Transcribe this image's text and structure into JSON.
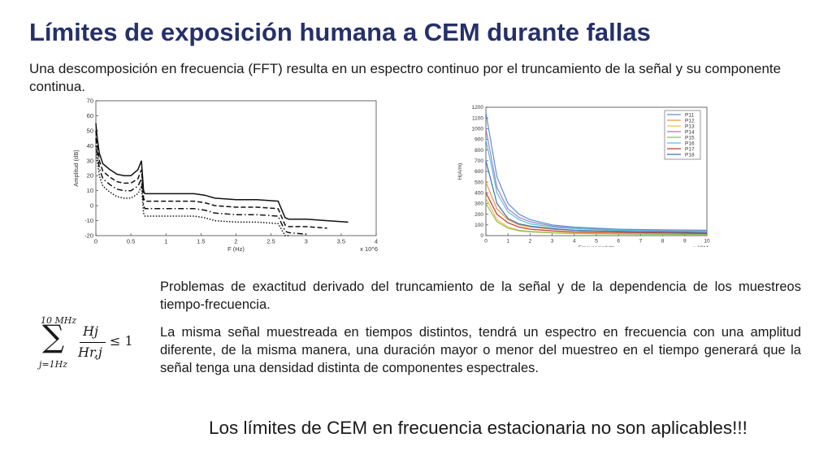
{
  "title": "Límites de exposición humana a CEM durante fallas",
  "intro": "Una descomposición en frecuencia (FFT) resulta en un espectro continuo por el truncamiento de la señal y su componente continua.",
  "chart_data": [
    {
      "type": "line",
      "ylabel": "Amplitud (dB)",
      "xlabel": "F (Hz)",
      "x_multiplier": "x 10^6",
      "xlim": [
        0,
        4
      ],
      "ylim": [
        -20,
        70
      ],
      "x_ticks": [
        "0",
        "0.5",
        "1",
        "1.5",
        "2",
        "2.5",
        "3",
        "3.5",
        "4"
      ],
      "y_ticks": [
        "-20",
        "-10",
        "0",
        "10",
        "20",
        "30",
        "40",
        "50",
        "60",
        "70"
      ],
      "series": [
        {
          "style": "solid",
          "x": [
            0,
            0.02,
            0.05,
            0.1,
            0.2,
            0.3,
            0.4,
            0.5,
            0.6,
            0.65,
            0.68,
            0.7,
            0.8,
            1.0,
            1.2,
            1.4,
            1.55,
            1.7,
            2.0,
            2.3,
            2.6,
            2.7,
            2.75,
            3.0,
            3.3,
            3.6
          ],
          "y": [
            55,
            45,
            35,
            28,
            24,
            21,
            20,
            20,
            24,
            30,
            10,
            8,
            8,
            8,
            8,
            8,
            7,
            5,
            4,
            4,
            3,
            -8,
            -9,
            -9,
            -10,
            -11
          ]
        },
        {
          "style": "dashed",
          "x": [
            0,
            0.02,
            0.05,
            0.1,
            0.2,
            0.3,
            0.4,
            0.5,
            0.6,
            0.65,
            0.68,
            0.7,
            0.8,
            1.0,
            1.2,
            1.4,
            1.55,
            1.7,
            2.0,
            2.3,
            2.6,
            2.7,
            2.75,
            3.0,
            3.3
          ],
          "y": [
            50,
            40,
            30,
            23,
            19,
            16,
            15,
            15,
            18,
            24,
            5,
            3,
            3,
            3,
            3,
            3,
            2,
            0,
            -1,
            -1,
            -2,
            -13,
            -14,
            -14,
            -15
          ]
        },
        {
          "style": "dashdot",
          "x": [
            0,
            0.02,
            0.05,
            0.1,
            0.2,
            0.3,
            0.4,
            0.5,
            0.6,
            0.65,
            0.68,
            0.7,
            0.8,
            1.0,
            1.2,
            1.4,
            1.55,
            1.7,
            2.0,
            2.3,
            2.6,
            2.7,
            2.75,
            3.0
          ],
          "y": [
            45,
            35,
            25,
            18,
            14,
            11,
            10,
            10,
            13,
            18,
            0,
            -2,
            -2,
            -2,
            -2,
            -2,
            -3,
            -5,
            -6,
            -6,
            -7,
            -17,
            -18,
            -19
          ]
        },
        {
          "style": "dotted",
          "x": [
            0,
            0.02,
            0.05,
            0.1,
            0.2,
            0.3,
            0.4,
            0.5,
            0.6,
            0.65,
            0.68,
            0.7,
            0.8,
            1.0,
            1.2,
            1.4,
            1.55,
            1.7,
            2.0,
            2.3,
            2.6,
            2.7,
            2.75
          ],
          "y": [
            40,
            30,
            20,
            13,
            9,
            6,
            5,
            5,
            8,
            13,
            -5,
            -7,
            -7,
            -7,
            -7,
            -7,
            -8,
            -10,
            -11,
            -11,
            -12,
            -20,
            -20
          ]
        }
      ]
    },
    {
      "type": "line",
      "ylabel": "H(A/m)",
      "xlabel": "Frecuencia(Hz)",
      "x_multiplier": "x 10^4",
      "xlim": [
        0,
        10
      ],
      "ylim": [
        0,
        1200
      ],
      "x_ticks": [
        "0",
        "1",
        "2",
        "3",
        "4",
        "5",
        "6",
        "7",
        "8",
        "9",
        "10"
      ],
      "y_ticks": [
        "0",
        "100",
        "200",
        "300",
        "400",
        "500",
        "600",
        "700",
        "800",
        "900",
        "1000",
        "1100",
        "1200"
      ],
      "legend_position": "top-right",
      "series": [
        {
          "name": "P11",
          "color": "#5b8fd6",
          "x": [
            0,
            0.5,
            1,
            1.5,
            2,
            3,
            4,
            6,
            8,
            10
          ],
          "y": [
            1150,
            550,
            300,
            200,
            150,
            100,
            80,
            60,
            55,
            50
          ]
        },
        {
          "name": "P12",
          "color": "#e69a3c",
          "x": [
            0,
            0.5,
            1,
            1.5,
            2,
            3,
            4,
            6,
            8,
            10
          ],
          "y": [
            500,
            250,
            150,
            100,
            80,
            60,
            50,
            40,
            35,
            30
          ]
        },
        {
          "name": "P13",
          "color": "#f0c040",
          "x": [
            0,
            0.5,
            1,
            1.5,
            2,
            3,
            4,
            6,
            8,
            10
          ],
          "y": [
            350,
            150,
            80,
            50,
            40,
            30,
            25,
            20,
            18,
            15
          ]
        },
        {
          "name": "P14",
          "color": "#a07cc5",
          "x": [
            0,
            0.5,
            1,
            1.5,
            2,
            3,
            4,
            6,
            8,
            10
          ],
          "y": [
            1000,
            450,
            250,
            170,
            130,
            90,
            70,
            55,
            50,
            45
          ]
        },
        {
          "name": "P15",
          "color": "#8fbf5a",
          "x": [
            0,
            0.5,
            1,
            1.5,
            2,
            3,
            4,
            6,
            8,
            10
          ],
          "y": [
            300,
            130,
            70,
            45,
            35,
            25,
            20,
            15,
            12,
            10
          ]
        },
        {
          "name": "P16",
          "color": "#58c0d8",
          "x": [
            0,
            0.5,
            1,
            1.5,
            2,
            3,
            4,
            6,
            8,
            10
          ],
          "y": [
            900,
            400,
            220,
            150,
            110,
            80,
            65,
            50,
            45,
            40
          ]
        },
        {
          "name": "P17",
          "color": "#c0392b",
          "x": [
            0,
            0.5,
            1,
            1.5,
            2,
            3,
            4,
            6,
            8,
            10
          ],
          "y": [
            400,
            200,
            120,
            80,
            60,
            45,
            35,
            30,
            25,
            20
          ]
        },
        {
          "name": "P18",
          "color": "#3c6fb6",
          "x": [
            0,
            0.5,
            1,
            1.5,
            2,
            3,
            4,
            6,
            8,
            10
          ],
          "y": [
            700,
            300,
            160,
            110,
            90,
            65,
            50,
            40,
            35,
            30
          ]
        }
      ]
    }
  ],
  "formula": {
    "upper": "10 MHz",
    "sigma": "∑",
    "lower": "j=1Hz",
    "numerator": "Hj",
    "denominator": "Hr,j",
    "relation": "≤ 1"
  },
  "body": {
    "p1": "Problemas de exactitud derivado del truncamiento de la señal y de la dependencia de los muestreos tiempo-frecuencia.",
    "p2": "La misma señal muestreada en tiempos distintos, tendrá un espectro en frecuencia con una amplitud diferente, de la misma manera, una duración mayor o menor del muestreo en el tiempo generará que la señal tenga una densidad distinta de componentes espectrales."
  },
  "conclusion": "Los límites de CEM en frecuencia estacionaria no son aplicables!!!"
}
